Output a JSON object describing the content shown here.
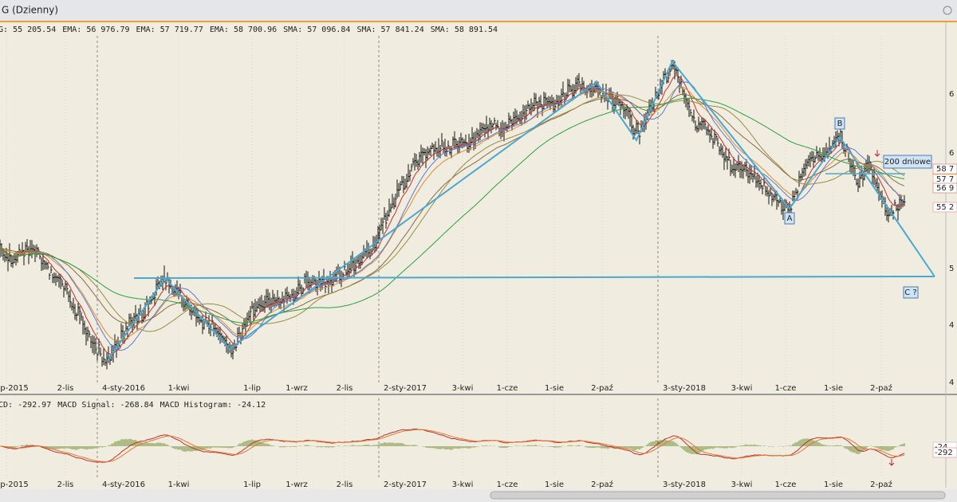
{
  "window": {
    "title": "G (Dzienny)"
  },
  "legend": [
    "G: 55 205.54",
    "EMA: 56 976.79",
    "EMA: 57 719.77",
    "EMA: 58 700.96",
    "SMA: 57 096.84",
    "SMA: 57 841.24",
    "SMA: 58 891.54"
  ],
  "x_labels": [
    "p-2015",
    "2-lis",
    "4-sty-2016",
    "1-kwi",
    "1-lip",
    "1-wrz",
    "2-lis",
    "2-sty-2017",
    "3-kwi",
    "1-cze",
    "1-sie",
    "2-paź",
    "3-sty-2018",
    "3-kwi",
    "1-cze",
    "1-sie",
    "2-paź"
  ],
  "right_axis": [
    "6",
    "6",
    "5",
    "4",
    "4"
  ],
  "price_tags": [
    "58 7",
    "57 7",
    "56 9",
    "55 2"
  ],
  "annotations": {
    "a": "A",
    "b": "B",
    "c": "C ?",
    "ma200": "200 dniowe"
  },
  "macd_legend": [
    "CD: -292.97",
    "MACD Signal: -268.84",
    "MACD Histogram: -24.12"
  ],
  "macd_x_labels": [
    "p-2015",
    "2-lis",
    "4-sty-2016",
    "1-kwi",
    "1-lip",
    "1-wrz",
    "2-lis",
    "2-sty-2017",
    "3-kwi",
    "1-cze",
    "1-sie",
    "2-paź",
    "3-sty-2018",
    "3-kwi",
    "1-cze",
    "1-sie",
    "2-paź"
  ],
  "macd_tags": [
    "-24",
    "-292"
  ]
}
